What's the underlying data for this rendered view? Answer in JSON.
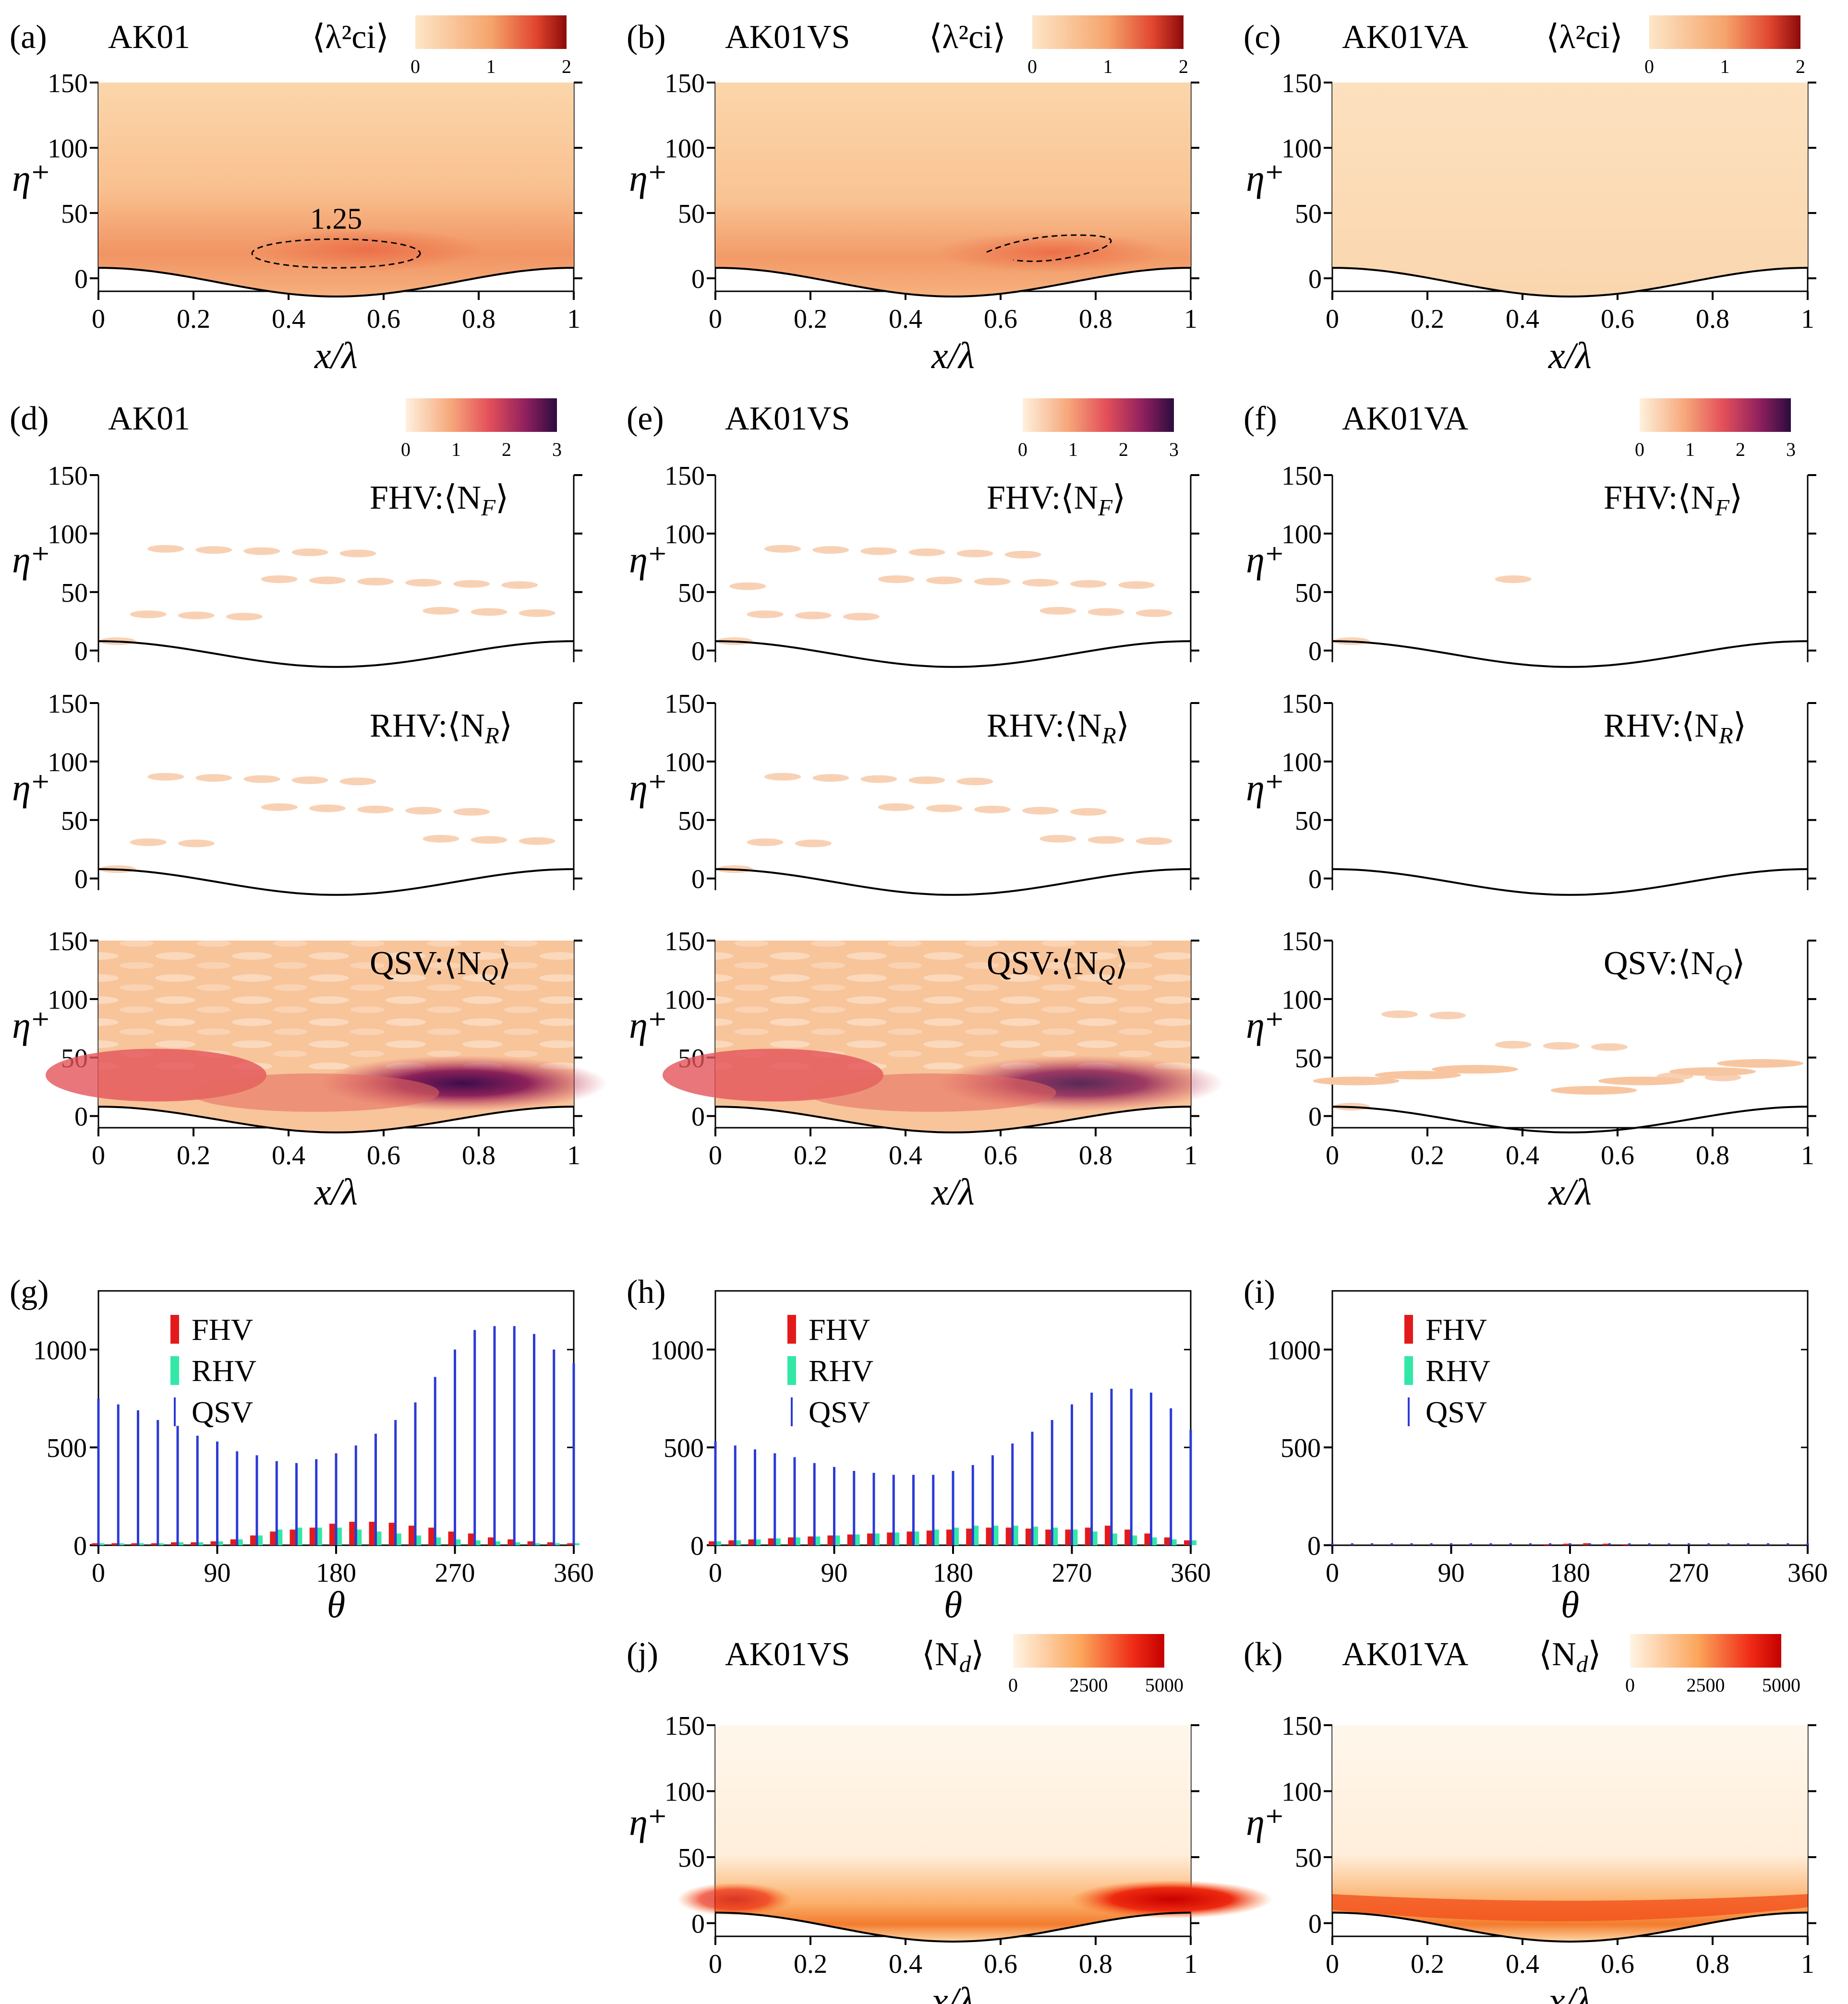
{
  "figure": {
    "row1": [
      {
        "label": "(a)",
        "case": "AK01",
        "cbar_title": "⟨λ²ci⟩",
        "cbar_ticks": [
          "0",
          "1",
          "2"
        ],
        "contour_label": "1.25"
      },
      {
        "label": "(b)",
        "case": "AK01VS",
        "cbar_title": "⟨λ²ci⟩",
        "cbar_ticks": [
          "0",
          "1",
          "2"
        ],
        "contour_label": ""
      },
      {
        "label": "(c)",
        "case": "AK01VA",
        "cbar_title": "⟨λ²ci⟩",
        "cbar_ticks": [
          "0",
          "1",
          "2"
        ],
        "contour_label": ""
      }
    ],
    "row2": [
      {
        "label": "(d)",
        "case": "AK01",
        "cbar_ticks": [
          "0",
          "1",
          "2",
          "3"
        ]
      },
      {
        "label": "(e)",
        "case": "AK01VS",
        "cbar_ticks": [
          "0",
          "1",
          "2",
          "3"
        ]
      },
      {
        "label": "(f)",
        "case": "AK01VA",
        "cbar_ticks": [
          "0",
          "1",
          "2",
          "3"
        ]
      }
    ],
    "vortex_titles": [
      "FHV:⟨N_F⟩",
      "RHV:⟨N_R⟩",
      "QSV:⟨N_Q⟩"
    ],
    "hist_panels": [
      {
        "label": "(g)"
      },
      {
        "label": "(h)"
      },
      {
        "label": "(i)"
      }
    ],
    "row4": [
      {
        "label": "(j)",
        "case": "AK01VS",
        "cbar_title": "⟨N_d⟩",
        "cbar_ticks": [
          "0",
          "2500",
          "5000"
        ]
      },
      {
        "label": "(k)",
        "case": "AK01VA",
        "cbar_title": "⟨N_d⟩",
        "cbar_ticks": [
          "0",
          "2500",
          "5000"
        ]
      }
    ],
    "axes": {
      "contour_xlabel": "x/λ",
      "contour_ylabel": "η⁺",
      "contour_xticks": [
        "0",
        "0.2",
        "0.4",
        "0.6",
        "0.8",
        "1"
      ],
      "contour_yticks": [
        "0",
        "50",
        "100",
        "150"
      ],
      "hist_xlabel": "θ",
      "hist_xticks": [
        "0",
        "90",
        "180",
        "270",
        "360"
      ],
      "hist_yticks": [
        "0",
        "500",
        "1000"
      ]
    },
    "legend": [
      "FHV",
      "RHV",
      "QSV"
    ],
    "colors": {
      "fhv": "#e31a1c",
      "rhv": "#33e8a6",
      "qsv": "#2b3bd6",
      "wall": "#000000"
    }
  },
  "chart_data": [
    {
      "type": "bar",
      "panel": "(g)",
      "xlabel": "θ",
      "ylabel": "",
      "xlim": [
        0,
        360
      ],
      "ylim": [
        0,
        1300
      ],
      "x": [
        0,
        15,
        30,
        45,
        60,
        75,
        90,
        105,
        120,
        135,
        150,
        165,
        180,
        195,
        210,
        225,
        240,
        255,
        270,
        285,
        300,
        315,
        330,
        345,
        360
      ],
      "series": [
        {
          "name": "QSV",
          "values": [
            750,
            720,
            690,
            640,
            610,
            560,
            530,
            480,
            460,
            430,
            420,
            440,
            470,
            510,
            570,
            640,
            730,
            860,
            1000,
            1100,
            1120,
            1120,
            1080,
            1000,
            930
          ]
        },
        {
          "name": "FHV",
          "values": [
            10,
            10,
            10,
            10,
            15,
            15,
            20,
            30,
            50,
            70,
            80,
            90,
            110,
            120,
            120,
            115,
            100,
            90,
            70,
            60,
            40,
            30,
            20,
            15,
            10
          ]
        },
        {
          "name": "RHV",
          "values": [
            10,
            10,
            10,
            10,
            15,
            15,
            20,
            30,
            50,
            80,
            90,
            90,
            90,
            80,
            70,
            60,
            50,
            40,
            30,
            25,
            20,
            15,
            10,
            10,
            10
          ]
        }
      ]
    },
    {
      "type": "bar",
      "panel": "(h)",
      "xlabel": "θ",
      "ylabel": "",
      "xlim": [
        0,
        360
      ],
      "ylim": [
        0,
        1300
      ],
      "x": [
        0,
        15,
        30,
        45,
        60,
        75,
        90,
        105,
        120,
        135,
        150,
        165,
        180,
        195,
        210,
        225,
        240,
        255,
        270,
        285,
        300,
        315,
        330,
        345,
        360
      ],
      "series": [
        {
          "name": "QSV",
          "values": [
            530,
            510,
            490,
            470,
            450,
            420,
            400,
            380,
            370,
            360,
            360,
            360,
            380,
            410,
            460,
            520,
            580,
            640,
            720,
            780,
            800,
            800,
            780,
            700,
            590
          ]
        },
        {
          "name": "FHV",
          "values": [
            20,
            25,
            30,
            35,
            40,
            45,
            50,
            55,
            60,
            65,
            70,
            75,
            80,
            85,
            90,
            90,
            85,
            80,
            80,
            90,
            100,
            80,
            60,
            40,
            25
          ]
        },
        {
          "name": "RHV",
          "values": [
            20,
            25,
            30,
            35,
            40,
            45,
            50,
            55,
            60,
            65,
            70,
            80,
            90,
            100,
            100,
            100,
            95,
            90,
            80,
            70,
            60,
            50,
            40,
            30,
            25
          ]
        }
      ]
    },
    {
      "type": "bar",
      "panel": "(i)",
      "xlabel": "θ",
      "ylabel": "",
      "xlim": [
        0,
        360
      ],
      "ylim": [
        0,
        1300
      ],
      "x": [
        0,
        15,
        30,
        45,
        60,
        75,
        90,
        105,
        120,
        135,
        150,
        165,
        180,
        195,
        210,
        225,
        240,
        255,
        270,
        285,
        300,
        315,
        330,
        345,
        360
      ],
      "series": [
        {
          "name": "QSV",
          "values": [
            10,
            10,
            10,
            10,
            10,
            10,
            10,
            10,
            10,
            10,
            10,
            10,
            10,
            10,
            10,
            10,
            10,
            10,
            10,
            10,
            10,
            10,
            10,
            10,
            10
          ]
        },
        {
          "name": "FHV",
          "values": [
            0,
            0,
            0,
            0,
            0,
            0,
            0,
            0,
            0,
            0,
            0,
            5,
            8,
            10,
            8,
            5,
            0,
            0,
            0,
            0,
            0,
            0,
            0,
            0,
            0
          ]
        },
        {
          "name": "RHV",
          "values": [
            0,
            0,
            0,
            0,
            0,
            0,
            0,
            0,
            0,
            0,
            0,
            0,
            0,
            0,
            0,
            0,
            0,
            0,
            0,
            0,
            0,
            0,
            0,
            0,
            0
          ]
        }
      ]
    }
  ]
}
